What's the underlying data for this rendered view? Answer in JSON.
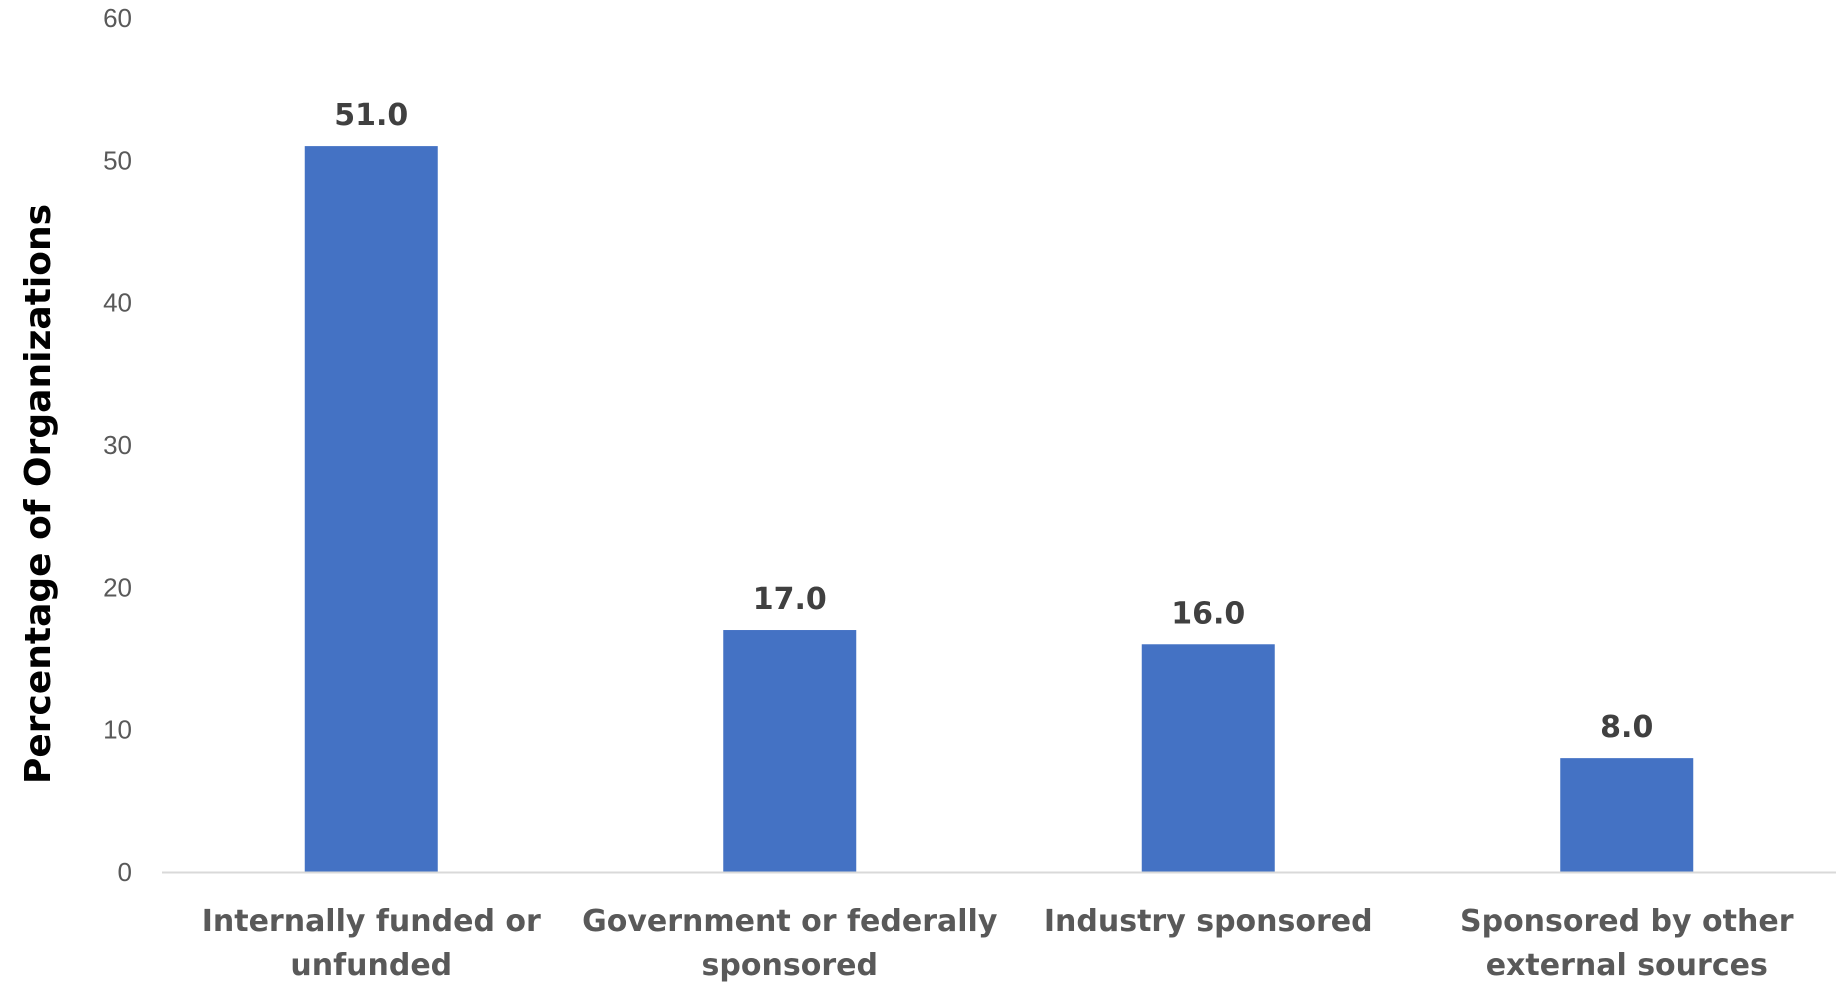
{
  "chart_data": {
    "type": "bar",
    "title": "",
    "xlabel": "",
    "ylabel": "Percentage of Organizations",
    "categories": [
      [
        "Internally funded or",
        "unfunded"
      ],
      [
        "Government or federally",
        "sponsored"
      ],
      [
        "Industry sponsored"
      ],
      [
        "Sponsored by other",
        "external sources"
      ]
    ],
    "values": [
      51.0,
      17.0,
      16.0,
      8.0
    ],
    "data_labels": [
      "51.0",
      "17.0",
      "16.0",
      "8.0"
    ],
    "ylim": [
      0,
      60
    ],
    "yticks": [
      0,
      10,
      20,
      30,
      40,
      50,
      60
    ],
    "grid": false,
    "legend": "none",
    "bar_color": "#4472C4",
    "axis_line_color": "#D9D9D9"
  }
}
